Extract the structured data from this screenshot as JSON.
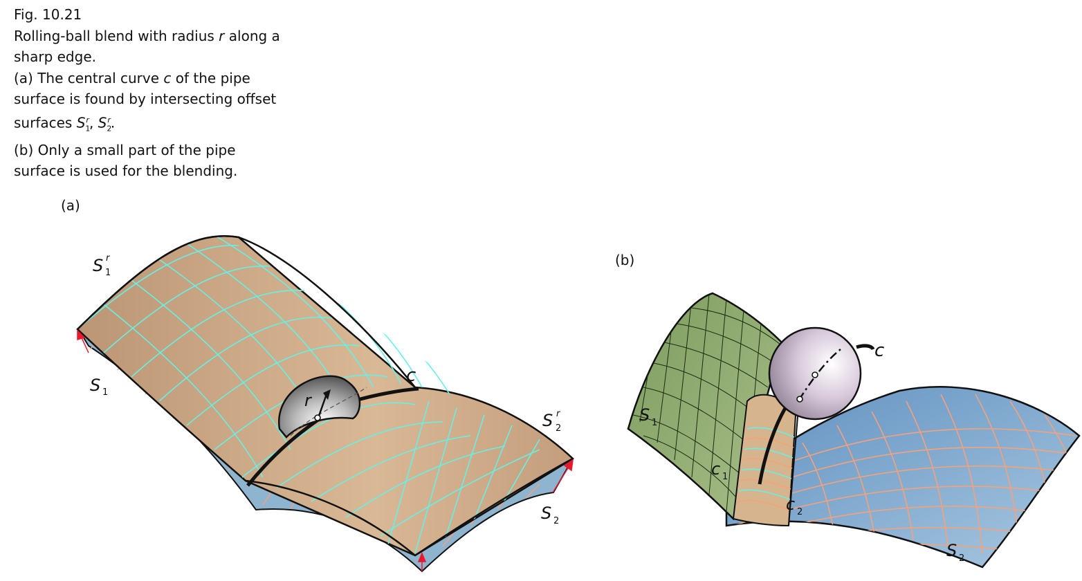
{
  "figure": {
    "number": "Fig. 10.21",
    "caption_lines": [
      "Rolling-ball blend with radius r along a",
      "sharp edge.",
      "(a) The central curve c of the pipe",
      "surface is found by intersecting offset",
      "surfaces S1r, S2r.",
      "(b) Only a small part of the pipe",
      "surface is used for the blending."
    ]
  },
  "panels": {
    "a": {
      "label": "(a)",
      "labels": {
        "S1r_main": "S",
        "S1r_sub": "1",
        "S1r_sup": "r",
        "S1_main": "S",
        "S1_sub": "1",
        "S2r_main": "S",
        "S2r_sub": "2",
        "S2r_sup": "r",
        "S2_main": "S",
        "S2_sub": "2",
        "c": "c",
        "r": "r"
      }
    },
    "b": {
      "label": "(b)",
      "labels": {
        "S1_main": "S",
        "S1_sub": "1",
        "S2_main": "S",
        "S2_sub": "2",
        "c": "c",
        "c1_main": "c",
        "c1_sub": "1",
        "c2_main": "c",
        "c2_sub": "2"
      }
    }
  },
  "colors": {
    "offset_surface": "#c9a684",
    "grid_cyan": "#66f0e6",
    "base_surface": "#8fb4cf",
    "grid_orange": "#f5a27a",
    "green_surface": "#8aa86a",
    "blue_surface": "#7aa7cf",
    "sphere": "#d8c9dc",
    "arrow_red": "#e8192c"
  }
}
